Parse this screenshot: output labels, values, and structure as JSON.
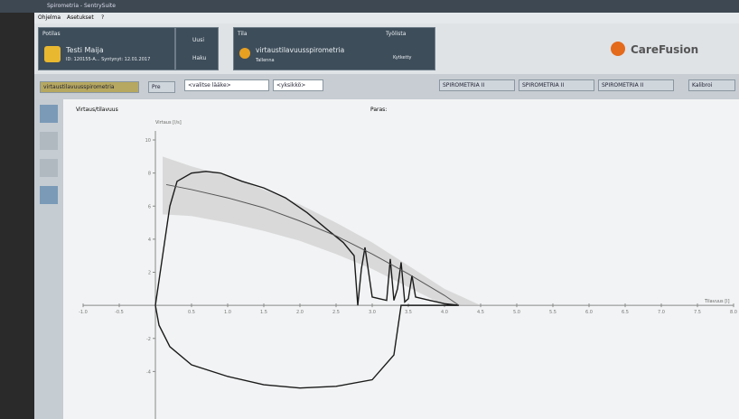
{
  "window": {
    "title": "Spirometria - SentrySuite",
    "menu": [
      "Ohjelma",
      "Asetukset",
      "?"
    ]
  },
  "patient": {
    "heading": "Potilas",
    "name": "Testi Maija",
    "id": "ID: 120155-A... Syntynyt: 12.01.2017",
    "buttons": [
      "Uusi",
      "Haku"
    ]
  },
  "status": {
    "heading": "Tila",
    "test": "virtaustilavuusspirometria",
    "sub": "Tallenna",
    "worklist": "Työlista",
    "worklist_state": "Kytketty"
  },
  "brand": "CareFusion",
  "toolbar": {
    "program": "virtaustilavuusspirometria",
    "pre": "Pre",
    "medication": "<valitse lääke>",
    "unit": "<yksikkö>",
    "tabs": [
      "SPIROMETRIA II",
      "SPIROMETRIA II",
      "SPIROMETRIA II"
    ],
    "calibrate": "Kalibroi"
  },
  "view": {
    "title": "Virtaus/tilavuus",
    "best": "Paras:"
  },
  "chart_data": {
    "type": "line",
    "y_label": "Virtaus [l/s]",
    "x_label": "Tilavuus [l]",
    "xlim": [
      -1,
      8
    ],
    "ylim": [
      -6,
      10
    ],
    "xticks": [
      {
        "value": -1,
        "label": "-1.0"
      },
      {
        "value": -0.5,
        "label": "-0.5"
      },
      {
        "value": 0.5,
        "label": "0.5"
      },
      {
        "value": 1,
        "label": "1.0"
      },
      {
        "value": 1.5,
        "label": "1.5"
      },
      {
        "value": 2,
        "label": "2.0"
      },
      {
        "value": 2.5,
        "label": "2.5"
      },
      {
        "value": 3,
        "label": "3.0"
      },
      {
        "value": 3.5,
        "label": "3.5"
      },
      {
        "value": 4,
        "label": "4.0"
      },
      {
        "value": 4.5,
        "label": "4.5"
      },
      {
        "value": 5,
        "label": "5.0"
      },
      {
        "value": 5.5,
        "label": "5.5"
      },
      {
        "value": 6,
        "label": "6.0"
      },
      {
        "value": 6.5,
        "label": "6.5"
      },
      {
        "value": 7,
        "label": "7.0"
      },
      {
        "value": 7.5,
        "label": "7.5"
      },
      {
        "value": 8,
        "label": "8.0"
      }
    ],
    "yticks": [
      -4,
      -2,
      2,
      4,
      6,
      8,
      10
    ],
    "series": [
      {
        "color": "#1a1a1a",
        "x": [
          0,
          0.1,
          0.2,
          0.3,
          0.5,
          0.7,
          0.9,
          1.2,
          1.5,
          1.8,
          2.1,
          2.4,
          2.6,
          2.75,
          2.8,
          2.85,
          2.9,
          2.95,
          3.0,
          3.1,
          3.2,
          3.25,
          3.3,
          3.35,
          3.4,
          3.45,
          3.5,
          3.55,
          3.6,
          3.7,
          3.8,
          3.9,
          4.0,
          4.1,
          4.2,
          4.0,
          3.6,
          3.4,
          3.3,
          3.0,
          2.5,
          2.0,
          1.5,
          1.0,
          0.5,
          0.2,
          0.05,
          0
        ],
        "values": [
          0,
          3,
          6,
          7.5,
          8.0,
          8.1,
          8.0,
          7.5,
          7.1,
          6.5,
          5.6,
          4.5,
          3.8,
          3.0,
          0,
          2.2,
          3.5,
          2.0,
          0.5,
          0.4,
          0.3,
          2.8,
          0.3,
          1.0,
          2.6,
          0.2,
          0.4,
          1.8,
          0.5,
          0.4,
          0.3,
          0.2,
          0.1,
          0.05,
          0,
          0,
          0,
          0,
          -3.0,
          -4.5,
          -4.9,
          -5.0,
          -4.8,
          -4.3,
          -3.6,
          -2.5,
          -1.2,
          0
        ]
      },
      {
        "color": "#555555",
        "x": [
          0.15,
          0.5,
          1,
          1.5,
          2,
          2.5,
          3,
          3.5,
          4,
          4.2
        ],
        "values": [
          7.3,
          7.0,
          6.5,
          5.9,
          5.1,
          4.2,
          3.1,
          1.9,
          0.6,
          0
        ]
      },
      {
        "color": "#c8c8c8",
        "x": [
          0.1,
          0.5,
          1,
          1.5,
          2,
          2.5,
          3,
          3.5,
          4,
          4.5
        ],
        "values": [
          9.0,
          8.4,
          7.8,
          7.0,
          6.1,
          5.0,
          3.8,
          2.4,
          1.0,
          0
        ],
        "low": [
          5.5,
          5.4,
          5.0,
          4.5,
          3.9,
          3.1,
          2.2,
          1.1,
          0,
          0
        ]
      }
    ]
  }
}
